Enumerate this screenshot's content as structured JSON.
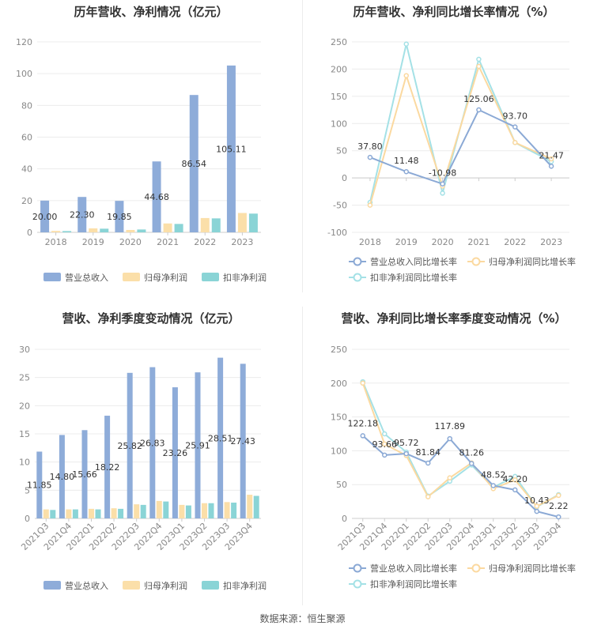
{
  "source_label": "数据来源：恒生聚源",
  "colors": {
    "revenue": "#8eacd9",
    "net_profit": "#fbdfa9",
    "deducted_profit": "#8ad4d6",
    "revenue_line": "#8ba9d5",
    "net_line": "#fbd9a0",
    "deducted_line": "#a4e1e6",
    "grid": "#ececec",
    "axis": "#cccccc"
  },
  "chart_data": [
    {
      "id": "annual_amount",
      "type": "bar",
      "title": "历年营收、净利情况（亿元）",
      "categories": [
        "2018",
        "2019",
        "2020",
        "2021",
        "2022",
        "2023"
      ],
      "ylim": [
        0,
        120
      ],
      "yticks": [
        0,
        20,
        40,
        60,
        80,
        100,
        120
      ],
      "series": [
        {
          "name": "营业总收入",
          "values": [
            20.0,
            22.3,
            19.85,
            44.68,
            86.54,
            105.11
          ],
          "labels": [
            "20.00",
            "22.30",
            "19.85",
            "44.68",
            "86.54",
            "105.11"
          ]
        },
        {
          "name": "归母净利润",
          "values": [
            0.9,
            2.5,
            1.5,
            5.6,
            9.0,
            12.2
          ]
        },
        {
          "name": "扣非净利润",
          "values": [
            0.8,
            2.3,
            1.8,
            5.3,
            8.8,
            11.8
          ]
        }
      ],
      "legend": "bottom"
    },
    {
      "id": "annual_growth",
      "type": "line",
      "title": "历年营收、净利同比增长率情况（%）",
      "categories": [
        "2018",
        "2019",
        "2020",
        "2021",
        "2022",
        "2023"
      ],
      "ylim": [
        -100,
        250
      ],
      "yticks": [
        -100,
        -50,
        0,
        50,
        100,
        150,
        200,
        250
      ],
      "series": [
        {
          "name": "营业总收入同比增长率",
          "values": [
            37.8,
            11.48,
            -10.98,
            125.06,
            93.7,
            21.47
          ],
          "labels": [
            "37.80",
            "11.48",
            "-10.98",
            "125.06",
            "93.70",
            "21.47"
          ]
        },
        {
          "name": "归母净利润同比增长率",
          "values": [
            -50,
            188,
            -15,
            205,
            65,
            35
          ]
        },
        {
          "name": "扣非净利润同比增长率",
          "values": [
            -45,
            246,
            -28,
            218,
            65,
            30
          ]
        }
      ],
      "legend": "bottom"
    },
    {
      "id": "quarterly_amount",
      "type": "bar",
      "title": "营收、净利季度变动情况（亿元）",
      "categories": [
        "2021Q3",
        "2021Q4",
        "2022Q1",
        "2022Q2",
        "2022Q3",
        "2022Q4",
        "2023Q1",
        "2023Q2",
        "2023Q3",
        "2023Q4"
      ],
      "ylim": [
        0,
        30
      ],
      "yticks": [
        0,
        5,
        10,
        15,
        20,
        25,
        30
      ],
      "series": [
        {
          "name": "营业总收入",
          "values": [
            11.85,
            14.8,
            15.66,
            18.22,
            25.82,
            26.83,
            23.26,
            25.91,
            28.51,
            27.43
          ],
          "labels": [
            "11.85",
            "14.80",
            "15.66",
            "18.22",
            "25.82",
            "26.83",
            "23.26",
            "25.91",
            "28.51",
            "27.43"
          ]
        },
        {
          "name": "归母净利润",
          "values": [
            1.6,
            1.6,
            1.7,
            1.8,
            2.5,
            3.1,
            2.4,
            2.7,
            2.9,
            4.2
          ]
        },
        {
          "name": "扣非净利润",
          "values": [
            1.5,
            1.6,
            1.6,
            1.7,
            2.4,
            3.0,
            2.3,
            2.7,
            2.8,
            4.0
          ]
        }
      ],
      "legend": "bottom"
    },
    {
      "id": "quarterly_growth",
      "type": "line",
      "title": "营收、净利同比增长率季度变动情况（%）",
      "categories": [
        "2021Q3",
        "2021Q4",
        "2022Q1",
        "2022Q2",
        "2022Q3",
        "2022Q4",
        "2023Q1",
        "2023Q2",
        "2023Q3",
        "2023Q4"
      ],
      "ylim": [
        0,
        250
      ],
      "yticks": [
        0,
        50,
        100,
        150,
        200,
        250
      ],
      "series": [
        {
          "name": "营业总收入同比增长率",
          "values": [
            122.18,
            93.66,
            95.72,
            81.84,
            117.89,
            81.26,
            48.52,
            42.2,
            10.43,
            2.22
          ],
          "labels": [
            "122.18",
            "93.66",
            "95.72",
            "81.84",
            "117.89",
            "81.26",
            "48.52",
            "42.20",
            "10.43",
            "2.22"
          ]
        },
        {
          "name": "归母净利润同比增长率",
          "values": [
            200,
            110,
            93,
            32,
            60,
            82,
            44,
            57,
            18,
            34
          ]
        },
        {
          "name": "扣非净利润同比增长率",
          "values": [
            202,
            125,
            98,
            33,
            55,
            79,
            46,
            62,
            17,
            35
          ]
        }
      ],
      "legend": "bottom"
    }
  ]
}
